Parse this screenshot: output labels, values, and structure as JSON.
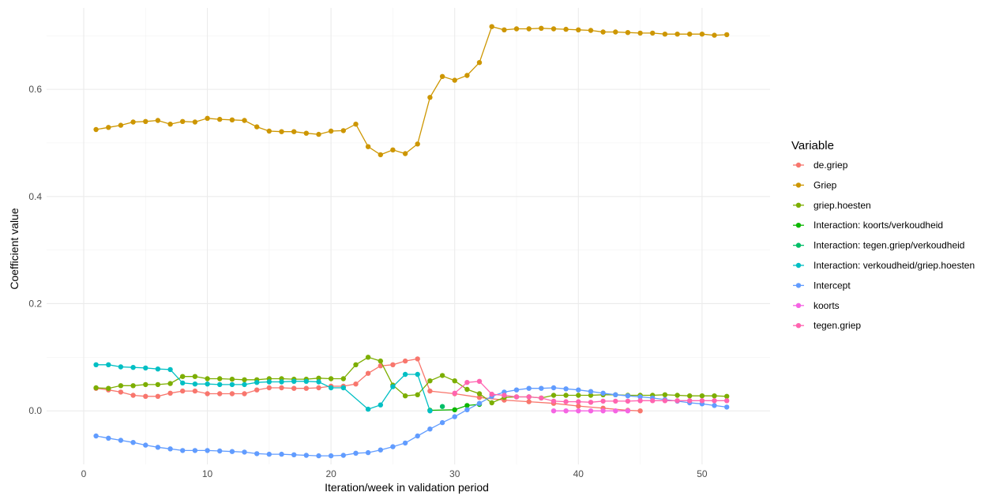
{
  "chart_data": {
    "type": "line",
    "title": "",
    "xlabel": "Iteration/week in validation period",
    "ylabel": "Coefficient value",
    "xlim": [
      -3,
      55.5
    ],
    "ylim": [
      -0.1,
      0.752
    ],
    "x_ticks": [
      0,
      10,
      20,
      30,
      40,
      50
    ],
    "y_ticks": [
      0.0,
      0.2,
      0.4,
      0.6
    ],
    "y_tick_labels": [
      "0.0",
      "0.2",
      "0.4",
      "0.6"
    ],
    "grid": true,
    "legend": {
      "title": "Variable",
      "position": "right"
    },
    "series": [
      {
        "name": "de.griep",
        "color": "#F8766D",
        "segments": [
          [
            [
              1,
              0.042
            ],
            [
              2,
              0.039
            ],
            [
              3,
              0.035
            ],
            [
              4,
              0.029
            ],
            [
              5,
              0.027
            ],
            [
              6,
              0.027
            ],
            [
              7,
              0.033
            ],
            [
              8,
              0.037
            ],
            [
              9,
              0.037
            ],
            [
              10,
              0.032
            ],
            [
              11,
              0.032
            ],
            [
              12,
              0.032
            ],
            [
              13,
              0.032
            ],
            [
              14,
              0.039
            ],
            [
              15,
              0.043
            ],
            [
              16,
              0.043
            ],
            [
              17,
              0.042
            ],
            [
              18,
              0.042
            ],
            [
              19,
              0.043
            ],
            [
              20,
              0.046
            ],
            [
              21,
              0.046
            ],
            [
              22,
              0.05
            ],
            [
              23,
              0.07
            ],
            [
              24,
              0.084
            ],
            [
              25,
              0.086
            ],
            [
              26,
              0.093
            ],
            [
              27,
              0.097
            ],
            [
              28,
              0.037
            ],
            [
              30,
              0.032
            ],
            [
              32,
              0.025
            ],
            [
              34,
              0.02
            ],
            [
              36,
              0.017
            ],
            [
              38,
              0.014
            ],
            [
              40,
              0.009
            ],
            [
              42,
              0.005
            ],
            [
              44,
              0.001
            ],
            [
              45,
              0.0
            ]
          ]
        ]
      },
      {
        "name": "Griep",
        "color": "#CD9600",
        "segments": [
          [
            [
              1,
              0.525
            ],
            [
              2,
              0.529
            ],
            [
              3,
              0.533
            ],
            [
              4,
              0.539
            ],
            [
              5,
              0.54
            ],
            [
              6,
              0.542
            ],
            [
              7,
              0.535
            ],
            [
              8,
              0.54
            ],
            [
              9,
              0.539
            ],
            [
              10,
              0.546
            ],
            [
              11,
              0.544
            ],
            [
              12,
              0.543
            ],
            [
              13,
              0.542
            ],
            [
              14,
              0.53
            ],
            [
              15,
              0.522
            ],
            [
              16,
              0.521
            ],
            [
              17,
              0.521
            ],
            [
              18,
              0.518
            ],
            [
              19,
              0.516
            ],
            [
              20,
              0.522
            ],
            [
              21,
              0.523
            ],
            [
              22,
              0.535
            ],
            [
              23,
              0.493
            ],
            [
              24,
              0.478
            ],
            [
              25,
              0.487
            ],
            [
              26,
              0.48
            ],
            [
              27,
              0.498
            ],
            [
              28,
              0.585
            ],
            [
              29,
              0.624
            ],
            [
              30,
              0.617
            ],
            [
              31,
              0.626
            ],
            [
              32,
              0.65
            ],
            [
              33,
              0.717
            ],
            [
              34,
              0.711
            ],
            [
              35,
              0.713
            ],
            [
              36,
              0.713
            ],
            [
              37,
              0.714
            ],
            [
              38,
              0.713
            ],
            [
              39,
              0.712
            ],
            [
              40,
              0.711
            ],
            [
              41,
              0.71
            ],
            [
              42,
              0.707
            ],
            [
              43,
              0.707
            ],
            [
              44,
              0.706
            ],
            [
              45,
              0.705
            ],
            [
              46,
              0.705
            ],
            [
              47,
              0.703
            ],
            [
              48,
              0.703
            ],
            [
              49,
              0.703
            ],
            [
              50,
              0.703
            ],
            [
              51,
              0.701
            ],
            [
              52,
              0.702
            ]
          ]
        ]
      },
      {
        "name": "griep.hoesten",
        "color": "#7CAE00",
        "segments": [
          [
            [
              1,
              0.043
            ],
            [
              2,
              0.042
            ],
            [
              3,
              0.047
            ],
            [
              4,
              0.047
            ],
            [
              5,
              0.049
            ],
            [
              6,
              0.049
            ],
            [
              7,
              0.051
            ],
            [
              8,
              0.064
            ],
            [
              9,
              0.064
            ],
            [
              10,
              0.06
            ],
            [
              11,
              0.06
            ],
            [
              12,
              0.059
            ],
            [
              13,
              0.058
            ],
            [
              14,
              0.058
            ],
            [
              15,
              0.06
            ],
            [
              16,
              0.06
            ],
            [
              17,
              0.059
            ],
            [
              18,
              0.059
            ],
            [
              19,
              0.061
            ],
            [
              20,
              0.06
            ],
            [
              21,
              0.06
            ],
            [
              22,
              0.086
            ],
            [
              23,
              0.1
            ],
            [
              24,
              0.093
            ],
            [
              25,
              0.048
            ],
            [
              26,
              0.028
            ],
            [
              27,
              0.03
            ],
            [
              28,
              0.056
            ],
            [
              29,
              0.066
            ],
            [
              30,
              0.056
            ],
            [
              31,
              0.04
            ],
            [
              32,
              0.032
            ],
            [
              33,
              0.015
            ],
            [
              34,
              0.025
            ],
            [
              35,
              0.026
            ],
            [
              36,
              0.026
            ],
            [
              37,
              0.024
            ],
            [
              38,
              0.029
            ],
            [
              39,
              0.029
            ],
            [
              40,
              0.029
            ],
            [
              41,
              0.029
            ],
            [
              42,
              0.03
            ],
            [
              43,
              0.03
            ],
            [
              44,
              0.029
            ],
            [
              45,
              0.029
            ],
            [
              46,
              0.029
            ],
            [
              47,
              0.03
            ],
            [
              48,
              0.029
            ],
            [
              49,
              0.028
            ],
            [
              50,
              0.028
            ],
            [
              51,
              0.028
            ],
            [
              52,
              0.027
            ]
          ]
        ]
      },
      {
        "name": "Interaction: koorts/verkoudheid",
        "color": "#0CB702",
        "segments": [
          [
            [
              28,
              0.001
            ],
            [
              30,
              0.002
            ],
            [
              31,
              0.01
            ],
            [
              32,
              0.012
            ]
          ]
        ]
      },
      {
        "name": "Interaction: tegen.griep/verkoudheid",
        "color": "#00BE67",
        "segments": [
          [
            [
              29,
              0.008
            ]
          ]
        ]
      },
      {
        "name": "Interaction: verkoudheid/griep.hoesten",
        "color": "#00BFC4",
        "segments": [
          [
            [
              1,
              0.086
            ],
            [
              2,
              0.086
            ],
            [
              3,
              0.082
            ],
            [
              4,
              0.081
            ],
            [
              5,
              0.08
            ],
            [
              6,
              0.078
            ],
            [
              7,
              0.077
            ],
            [
              8,
              0.052
            ],
            [
              9,
              0.05
            ],
            [
              10,
              0.05
            ],
            [
              11,
              0.049
            ],
            [
              12,
              0.049
            ],
            [
              13,
              0.049
            ],
            [
              14,
              0.053
            ],
            [
              15,
              0.054
            ],
            [
              16,
              0.054
            ],
            [
              17,
              0.055
            ],
            [
              18,
              0.055
            ],
            [
              19,
              0.054
            ],
            [
              20,
              0.043
            ],
            [
              21,
              0.043
            ],
            [
              23,
              0.003
            ],
            [
              24,
              0.011
            ],
            [
              25,
              0.045
            ],
            [
              26,
              0.068
            ],
            [
              27,
              0.068
            ],
            [
              28,
              0.0
            ]
          ]
        ]
      },
      {
        "name": "Intercept",
        "color": "#619CFF",
        "segments": [
          [
            [
              1,
              -0.047
            ],
            [
              2,
              -0.051
            ],
            [
              3,
              -0.055
            ],
            [
              4,
              -0.059
            ],
            [
              5,
              -0.064
            ],
            [
              6,
              -0.068
            ],
            [
              7,
              -0.071
            ],
            [
              8,
              -0.074
            ],
            [
              9,
              -0.074
            ],
            [
              10,
              -0.074
            ],
            [
              11,
              -0.075
            ],
            [
              12,
              -0.076
            ],
            [
              13,
              -0.077
            ],
            [
              14,
              -0.08
            ],
            [
              15,
              -0.081
            ],
            [
              16,
              -0.081
            ],
            [
              17,
              -0.082
            ],
            [
              18,
              -0.083
            ],
            [
              19,
              -0.084
            ],
            [
              20,
              -0.084
            ],
            [
              21,
              -0.083
            ],
            [
              22,
              -0.079
            ],
            [
              23,
              -0.078
            ],
            [
              24,
              -0.073
            ],
            [
              25,
              -0.067
            ],
            [
              26,
              -0.06
            ],
            [
              27,
              -0.047
            ],
            [
              28,
              -0.034
            ],
            [
              29,
              -0.022
            ],
            [
              30,
              -0.011
            ],
            [
              31,
              0.002
            ],
            [
              32,
              0.014
            ],
            [
              33,
              0.027
            ],
            [
              34,
              0.035
            ],
            [
              35,
              0.039
            ],
            [
              36,
              0.042
            ],
            [
              37,
              0.042
            ],
            [
              38,
              0.043
            ],
            [
              39,
              0.041
            ],
            [
              40,
              0.039
            ],
            [
              41,
              0.036
            ],
            [
              42,
              0.033
            ],
            [
              43,
              0.03
            ],
            [
              44,
              0.028
            ],
            [
              45,
              0.026
            ],
            [
              46,
              0.024
            ],
            [
              47,
              0.021
            ],
            [
              48,
              0.018
            ],
            [
              49,
              0.015
            ],
            [
              50,
              0.013
            ],
            [
              51,
              0.01
            ],
            [
              52,
              0.007
            ]
          ]
        ]
      },
      {
        "name": "koorts",
        "color": "#F564E3",
        "segments": [
          [
            [
              38,
              0.0
            ],
            [
              39,
              0.0
            ],
            [
              40,
              0.0
            ],
            [
              41,
              0.0
            ],
            [
              42,
              0.0
            ],
            [
              43,
              0.0
            ],
            [
              44,
              0.0
            ]
          ]
        ]
      },
      {
        "name": "tegen.griep",
        "color": "#FF64B0",
        "segments": [
          [
            [
              30,
              0.033
            ],
            [
              31,
              0.053
            ],
            [
              32,
              0.055
            ],
            [
              33,
              0.031
            ],
            [
              34,
              0.029
            ],
            [
              35,
              0.026
            ],
            [
              36,
              0.026
            ],
            [
              37,
              0.024
            ],
            [
              38,
              0.018
            ],
            [
              39,
              0.017
            ],
            [
              40,
              0.017
            ],
            [
              41,
              0.016
            ],
            [
              42,
              0.018
            ],
            [
              43,
              0.018
            ],
            [
              44,
              0.018
            ],
            [
              45,
              0.019
            ],
            [
              46,
              0.019
            ],
            [
              47,
              0.019
            ],
            [
              48,
              0.019
            ],
            [
              49,
              0.019
            ],
            [
              50,
              0.019
            ],
            [
              51,
              0.019
            ],
            [
              52,
              0.019
            ]
          ]
        ]
      }
    ]
  }
}
